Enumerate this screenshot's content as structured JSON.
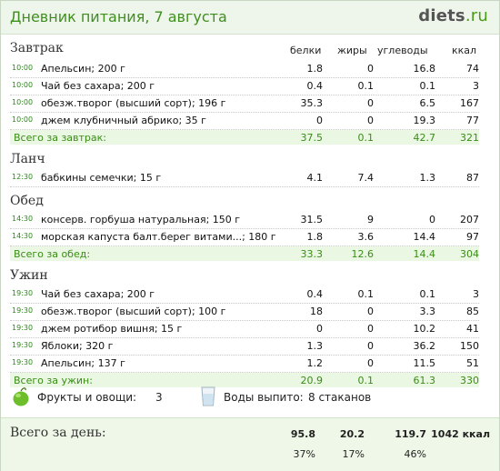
{
  "header": {
    "title": "Дневник питания, 7 августа",
    "brand_main": "diets",
    "brand_tld": ".ru"
  },
  "columns": {
    "protein": "белки",
    "fat": "жиры",
    "carbs": "углеводы",
    "kcal": "ккал"
  },
  "meals": [
    {
      "title": "Завтрак",
      "items": [
        {
          "time": "10:00",
          "name": "Апельсин; 200 г",
          "protein": "1.8",
          "fat": "0",
          "carbs": "16.8",
          "kcal": "74"
        },
        {
          "time": "10:00",
          "name": "Чай без сахара; 200 г",
          "protein": "0.4",
          "fat": "0.1",
          "carbs": "0.1",
          "kcal": "3"
        },
        {
          "time": "10:00",
          "name": "обезж.творог (высший сорт); 196 г",
          "protein": "35.3",
          "fat": "0",
          "carbs": "6.5",
          "kcal": "167"
        },
        {
          "time": "10:00",
          "name": "джем клубничный абрико; 35 г",
          "protein": "0",
          "fat": "0",
          "carbs": "19.3",
          "kcal": "77"
        }
      ],
      "total": {
        "label": "Всего за завтрак:",
        "protein": "37.5",
        "fat": "0.1",
        "carbs": "42.7",
        "kcal": "321"
      }
    },
    {
      "title": "Ланч",
      "items": [
        {
          "time": "12:30",
          "name": "бабкины семечки; 15 г",
          "protein": "4.1",
          "fat": "7.4",
          "carbs": "1.3",
          "kcal": "87"
        }
      ],
      "total": null
    },
    {
      "title": "Обед",
      "items": [
        {
          "time": "14:30",
          "name": "консерв. горбуша натуральная; 150 г",
          "protein": "31.5",
          "fat": "9",
          "carbs": "0",
          "kcal": "207"
        },
        {
          "time": "14:30",
          "name": "морская капуста балт.берег витами...; 180 г",
          "protein": "1.8",
          "fat": "3.6",
          "carbs": "14.4",
          "kcal": "97"
        }
      ],
      "total": {
        "label": "Всего за обед:",
        "protein": "33.3",
        "fat": "12.6",
        "carbs": "14.4",
        "kcal": "304"
      }
    },
    {
      "title": "Ужин",
      "items": [
        {
          "time": "19:30",
          "name": "Чай без сахара; 200 г",
          "protein": "0.4",
          "fat": "0.1",
          "carbs": "0.1",
          "kcal": "3"
        },
        {
          "time": "19:30",
          "name": "обезж.творог (высший сорт); 100 г",
          "protein": "18",
          "fat": "0",
          "carbs": "3.3",
          "kcal": "85"
        },
        {
          "time": "19:30",
          "name": "джем ротибор вишня; 15 г",
          "protein": "0",
          "fat": "0",
          "carbs": "10.2",
          "kcal": "41"
        },
        {
          "time": "19:30",
          "name": "Яблоки; 320 г",
          "protein": "1.3",
          "fat": "0",
          "carbs": "36.2",
          "kcal": "150"
        },
        {
          "time": "19:30",
          "name": "Апельсин; 137 г",
          "protein": "1.2",
          "fat": "0",
          "carbs": "11.5",
          "kcal": "51"
        }
      ],
      "total": {
        "label": "Всего за ужин:",
        "protein": "20.9",
        "fat": "0.1",
        "carbs": "61.3",
        "kcal": "330"
      }
    }
  ],
  "extras": {
    "fruits_label": "Фрукты и овощи:",
    "fruits_value": "3",
    "water_label": "Воды выпито:",
    "water_value": "8 стаканов",
    "fruit_icon": "apple-icon",
    "water_icon": "glass-icon"
  },
  "day_total": {
    "label": "Всего за день:",
    "protein": "95.8",
    "fat": "20.2",
    "carbs": "119.7",
    "kcal": "1042 ккал",
    "protein_pct": "37%",
    "fat_pct": "17%",
    "carbs_pct": "46%"
  },
  "colors": {
    "accent_green": "#3a8d17",
    "total_bg": "#eaf7e2",
    "header_bg": "#eef5ea"
  }
}
